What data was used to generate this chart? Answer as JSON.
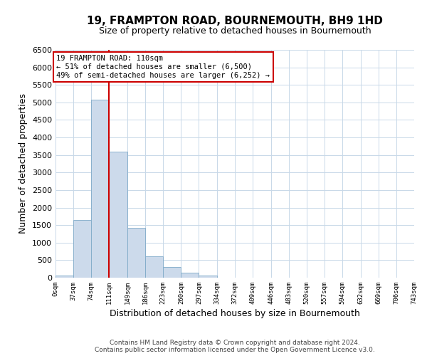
{
  "title": "19, FRAMPTON ROAD, BOURNEMOUTH, BH9 1HD",
  "subtitle": "Size of property relative to detached houses in Bournemouth",
  "xlabel": "Distribution of detached houses by size in Bournemouth",
  "ylabel": "Number of detached properties",
  "bar_edges": [
    0,
    37,
    74,
    111,
    149,
    186,
    223,
    260,
    297,
    334,
    372,
    409,
    446,
    483,
    520,
    557,
    594,
    632,
    669,
    706,
    743
  ],
  "bar_heights": [
    60,
    1650,
    5080,
    3600,
    1420,
    610,
    300,
    145,
    60,
    0,
    0,
    0,
    0,
    0,
    0,
    0,
    0,
    0,
    0,
    0
  ],
  "bar_color": "#ccdaeb",
  "bar_edge_color": "#7faac8",
  "property_line_x": 110,
  "property_line_color": "#cc0000",
  "ylim": [
    0,
    6500
  ],
  "yticks": [
    0,
    500,
    1000,
    1500,
    2000,
    2500,
    3000,
    3500,
    4000,
    4500,
    5000,
    5500,
    6000,
    6500
  ],
  "annotation_title": "19 FRAMPTON ROAD: 110sqm",
  "annotation_line1": "← 51% of detached houses are smaller (6,500)",
  "annotation_line2": "49% of semi-detached houses are larger (6,252) →",
  "annotation_box_color": "#cc0000",
  "footer_line1": "Contains HM Land Registry data © Crown copyright and database right 2024.",
  "footer_line2": "Contains public sector information licensed under the Open Government Licence v3.0.",
  "background_color": "#ffffff",
  "grid_color": "#c8d8e8",
  "tick_labels": [
    "0sqm",
    "37sqm",
    "74sqm",
    "111sqm",
    "149sqm",
    "186sqm",
    "223sqm",
    "260sqm",
    "297sqm",
    "334sqm",
    "372sqm",
    "409sqm",
    "446sqm",
    "483sqm",
    "520sqm",
    "557sqm",
    "594sqm",
    "632sqm",
    "669sqm",
    "706sqm",
    "743sqm"
  ],
  "title_fontsize": 11,
  "subtitle_fontsize": 9
}
